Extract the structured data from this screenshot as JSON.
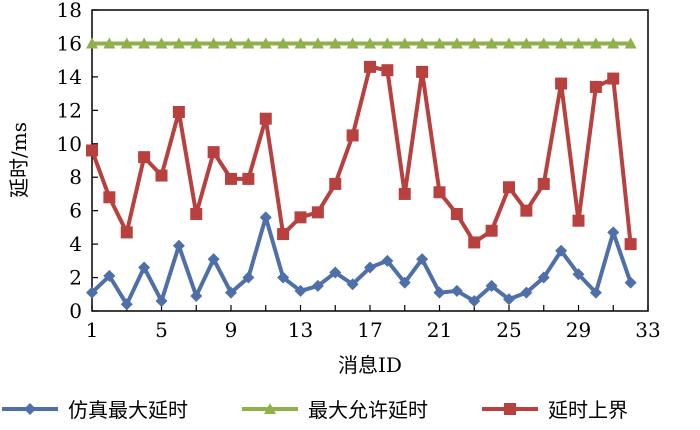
{
  "chart_data": {
    "type": "line",
    "xlabel": "消息ID",
    "ylabel": "延时/ms",
    "xlim": [
      1,
      33
    ],
    "ylim": [
      0,
      18
    ],
    "xticks": [
      1,
      5,
      9,
      13,
      17,
      21,
      25,
      29,
      33
    ],
    "yticks": [
      0,
      2,
      4,
      6,
      8,
      10,
      12,
      14,
      16,
      18
    ],
    "grid": false,
    "legend": "bottom",
    "x": [
      1,
      2,
      3,
      4,
      5,
      6,
      7,
      8,
      9,
      10,
      11,
      12,
      13,
      14,
      15,
      16,
      17,
      18,
      19,
      20,
      21,
      22,
      23,
      24,
      25,
      26,
      27,
      28,
      29,
      30,
      31,
      32
    ],
    "series": [
      {
        "name": "仿真最大延时",
        "color": "#4F6FA8",
        "marker": "diamond",
        "values": [
          1.1,
          2.1,
          0.4,
          2.6,
          0.6,
          3.9,
          0.9,
          3.1,
          1.1,
          2.0,
          5.6,
          2.0,
          1.2,
          1.5,
          2.3,
          1.6,
          2.6,
          3.0,
          1.7,
          3.1,
          1.1,
          1.2,
          0.6,
          1.5,
          0.7,
          1.1,
          2.0,
          3.6,
          2.2,
          1.1,
          4.7,
          1.7
        ]
      },
      {
        "name": "最大允许延时",
        "color": "#8FB04A",
        "marker": "triangle",
        "values": [
          16,
          16,
          16,
          16,
          16,
          16,
          16,
          16,
          16,
          16,
          16,
          16,
          16,
          16,
          16,
          16,
          16,
          16,
          16,
          16,
          16,
          16,
          16,
          16,
          16,
          16,
          16,
          16,
          16,
          16,
          16,
          16
        ]
      },
      {
        "name": "延时上界",
        "color": "#B8403E",
        "marker": "square",
        "values": [
          9.6,
          6.8,
          4.7,
          9.2,
          8.1,
          11.9,
          5.8,
          9.5,
          7.9,
          7.9,
          11.5,
          4.6,
          5.6,
          5.9,
          7.6,
          10.5,
          14.6,
          14.4,
          7.0,
          14.3,
          7.1,
          5.8,
          4.1,
          4.8,
          7.4,
          6.0,
          7.6,
          13.6,
          5.4,
          13.4,
          13.9,
          4.0
        ]
      }
    ]
  }
}
